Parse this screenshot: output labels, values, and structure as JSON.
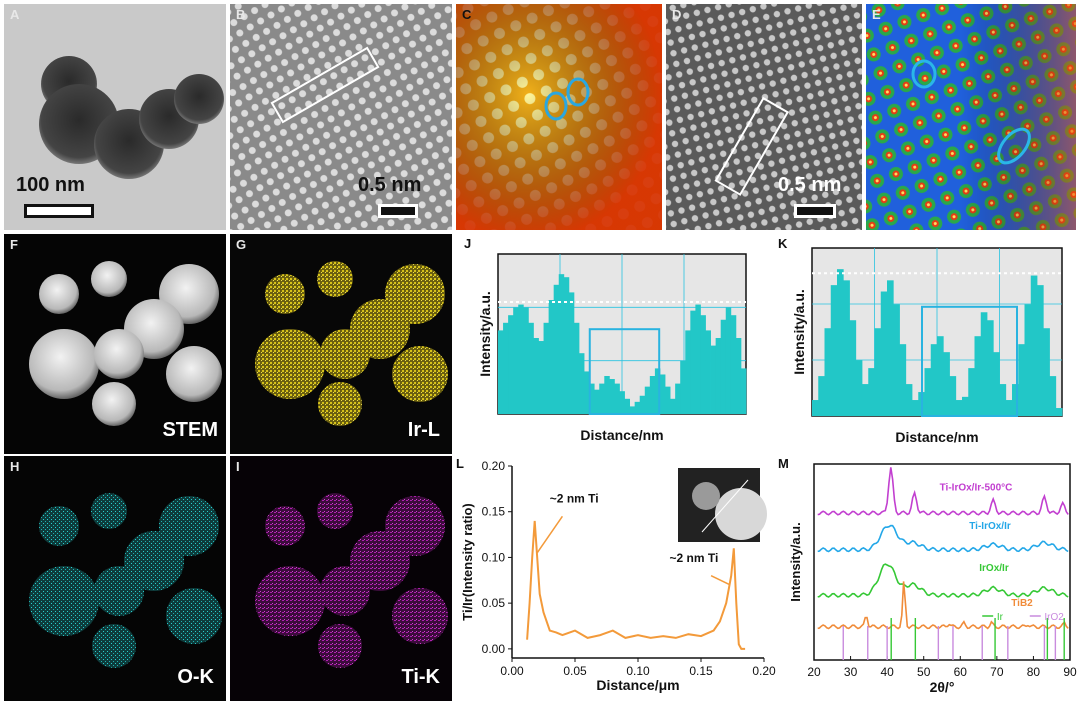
{
  "panels": {
    "A": {
      "label": "A",
      "scale": "100 nm"
    },
    "B": {
      "label": "B",
      "scale": "0.5 nm"
    },
    "C": {
      "label": "C"
    },
    "D": {
      "label": "D",
      "scale": "0.5 nm"
    },
    "E": {
      "label": "E"
    },
    "F": {
      "label": "F",
      "text": "STEM"
    },
    "G": {
      "label": "G",
      "text": "Ir-L",
      "color": "#d6c21a"
    },
    "H": {
      "label": "H",
      "text": "O-K",
      "color": "#1fb3b3"
    },
    "I": {
      "label": "I",
      "text": "Ti-K",
      "color": "#b020b0"
    },
    "J": {
      "label": "J",
      "xlabel": "Distance/nm",
      "ylabel": "Intensity/a.u."
    },
    "K": {
      "label": "K",
      "xlabel": "Distance/nm",
      "ylabel": "Intensity/a.u."
    },
    "L": {
      "label": "L"
    },
    "M": {
      "label": "M"
    }
  },
  "chart_data": [
    {
      "id": "J",
      "type": "area",
      "xlabel": "Distance/nm",
      "ylabel": "Intensity/a.u.",
      "color": "#22c7c7",
      "values": [
        0.55,
        0.6,
        0.65,
        0.7,
        0.72,
        0.7,
        0.6,
        0.5,
        0.48,
        0.6,
        0.75,
        0.85,
        0.92,
        0.9,
        0.8,
        0.6,
        0.4,
        0.28,
        0.2,
        0.16,
        0.2,
        0.25,
        0.23,
        0.2,
        0.15,
        0.1,
        0.05,
        0.08,
        0.12,
        0.18,
        0.25,
        0.3,
        0.26,
        0.18,
        0.1,
        0.2,
        0.35,
        0.55,
        0.68,
        0.72,
        0.65,
        0.55,
        0.45,
        0.5,
        0.62,
        0.7,
        0.65,
        0.5,
        0.3
      ]
    },
    {
      "id": "K",
      "type": "area",
      "xlabel": "Distance/nm",
      "ylabel": "Intensity/a.u.",
      "color": "#22c7c7",
      "values": [
        0.1,
        0.25,
        0.55,
        0.82,
        0.92,
        0.85,
        0.6,
        0.35,
        0.2,
        0.3,
        0.55,
        0.78,
        0.85,
        0.7,
        0.45,
        0.2,
        0.1,
        0.15,
        0.3,
        0.45,
        0.5,
        0.4,
        0.25,
        0.1,
        0.12,
        0.3,
        0.5,
        0.65,
        0.6,
        0.4,
        0.2,
        0.1,
        0.2,
        0.45,
        0.7,
        0.88,
        0.82,
        0.55,
        0.25,
        0.05
      ]
    },
    {
      "id": "L",
      "type": "line",
      "xlabel": "Distance/μm",
      "ylabel": "Ti/Ir(Intensity ratio)",
      "xlim": [
        0.0,
        0.2
      ],
      "ylim": [
        -0.01,
        0.2
      ],
      "xticks": [
        "0.00",
        "0.05",
        "0.10",
        "0.15",
        "0.20"
      ],
      "yticks": [
        "0.00",
        "0.05",
        "0.10",
        "0.15",
        "0.20"
      ],
      "color": "#f39a3a",
      "annotations": [
        "~2 nm Ti",
        "~2 nm Ti"
      ],
      "x": [
        0.012,
        0.014,
        0.016,
        0.018,
        0.02,
        0.022,
        0.025,
        0.03,
        0.035,
        0.04,
        0.05,
        0.06,
        0.07,
        0.08,
        0.09,
        0.1,
        0.11,
        0.12,
        0.13,
        0.14,
        0.15,
        0.16,
        0.165,
        0.17,
        0.174,
        0.176,
        0.178,
        0.18,
        0.182,
        0.185
      ],
      "y": [
        0.01,
        0.05,
        0.1,
        0.14,
        0.1,
        0.06,
        0.04,
        0.02,
        0.018,
        0.015,
        0.02,
        0.012,
        0.015,
        0.02,
        0.012,
        0.015,
        0.012,
        0.014,
        0.012,
        0.016,
        0.014,
        0.02,
        0.03,
        0.05,
        0.08,
        0.11,
        0.05,
        0.005,
        0.0,
        0.0
      ]
    },
    {
      "id": "M",
      "type": "line",
      "xlabel": "2θ/°",
      "ylabel": "Intensity/a.u.",
      "xlim": [
        20,
        90
      ],
      "xticks": [
        "20",
        "30",
        "40",
        "50",
        "60",
        "70",
        "80",
        "90"
      ],
      "series": [
        {
          "name": "Ti-IrOx/Ir-500°C",
          "color": "#c23fd0",
          "offset": 4.2,
          "peaks": [
            [
              41,
              1.3
            ],
            [
              47.5,
              0.55
            ],
            [
              69,
              0.35
            ],
            [
              83,
              0.45
            ],
            [
              88,
              0.25
            ]
          ]
        },
        {
          "name": "Ti-IrOx/Ir",
          "color": "#23a7e8",
          "offset": 3.15,
          "peaks": [
            [
              40.5,
              0.7
            ],
            [
              47,
              0.2
            ],
            [
              69,
              0.15
            ],
            [
              83,
              0.2
            ]
          ]
        },
        {
          "name": "IrOx/Ir",
          "color": "#35c835",
          "offset": 1.85,
          "peaks": [
            [
              40,
              0.9
            ],
            [
              47,
              0.3
            ],
            [
              69,
              0.2
            ],
            [
              83,
              0.2
            ]
          ]
        },
        {
          "name": "TiB2",
          "color": "#f08c3a",
          "offset": 0.95,
          "peaks": [
            [
              34.3,
              0.35
            ],
            [
              44.6,
              1.3
            ],
            [
              56.9,
              0.1
            ],
            [
              61,
              0.1
            ],
            [
              68.5,
              0.12
            ],
            [
              78.5,
              0.08
            ],
            [
              88.5,
              0.1
            ]
          ]
        }
      ],
      "references": {
        "Ir": {
          "name": "Ir",
          "color": "#35c835",
          "lines": [
            40.7,
            47.3,
            69.1,
            83.4,
            88.0
          ]
        },
        "IrO2": {
          "name": "IrO2",
          "color": "#c98bde",
          "lines": [
            28.0,
            34.7,
            40.0,
            54.0,
            58.0,
            66.0,
            73.0,
            83.0,
            86.0
          ]
        }
      }
    }
  ]
}
